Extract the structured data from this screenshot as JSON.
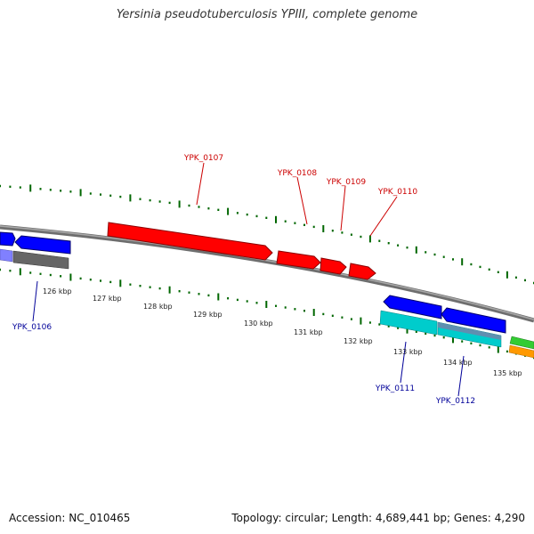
{
  "title": "Yersinia pseudotuberculosis YPIII, complete genome",
  "footer": {
    "accession": "Accession: NC_010465",
    "summary": "Topology: circular; Length: 4,689,441 bp; Genes: 4,290"
  },
  "colors": {
    "backbone": "#808080",
    "forward_gene": "#ff0000",
    "reverse_gene": "#0000ff",
    "forward_label": "#cc0000",
    "reverse_label": "#000099",
    "tick": "#006600",
    "cds_cyan": "#00cccc",
    "cds_gray": "#666666",
    "cds_lavender": "#8080ff",
    "cds_green": "#33cc33",
    "cds_orange": "#ff9900"
  },
  "scale_labels": [
    "126 kbp",
    "127 kbp",
    "128 kbp",
    "129 kbp",
    "130 kbp",
    "131 kbp",
    "132 kbp",
    "133 kbp",
    "134 kbp",
    "135 kbp"
  ],
  "genes": [
    {
      "label": "YPK_0106",
      "strand": "reverse"
    },
    {
      "label": "YPK_0107",
      "strand": "forward"
    },
    {
      "label": "YPK_0108",
      "strand": "forward"
    },
    {
      "label": "YPK_0109",
      "strand": "forward"
    },
    {
      "label": "YPK_0110",
      "strand": "forward"
    },
    {
      "label": "YPK_0111",
      "strand": "reverse"
    },
    {
      "label": "YPK_0112",
      "strand": "reverse"
    }
  ]
}
